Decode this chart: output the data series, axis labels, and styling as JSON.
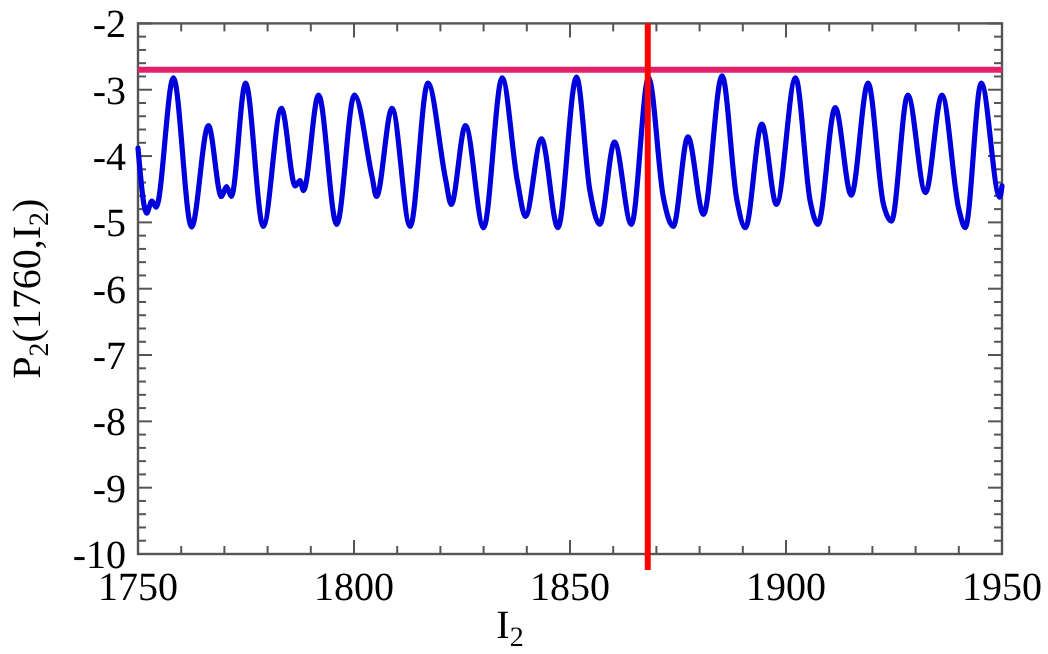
{
  "chart_data": {
    "type": "line",
    "xlabel": "I$_{2}$",
    "ylabel": "P$_{2}$(1760,I$_{2}$)",
    "xlim": [
      1750,
      1950
    ],
    "ylim": [
      -10,
      -2
    ],
    "xticks": [
      1750,
      {
        "value": 1760,
        "label": null
      },
      {
        "value": 1770,
        "label": null
      },
      {
        "value": 1780,
        "label": null
      },
      {
        "value": 1790,
        "label": null
      },
      1800,
      {
        "value": 1810,
        "label": null
      },
      {
        "value": 1820,
        "label": null
      },
      {
        "value": 1830,
        "label": null
      },
      {
        "value": 1840,
        "label": null
      },
      1850,
      {
        "value": 1860,
        "label": null
      },
      {
        "value": 1870,
        "label": null
      },
      {
        "value": 1880,
        "label": null
      },
      {
        "value": 1890,
        "label": null
      },
      1900,
      {
        "value": 1910,
        "label": null
      },
      {
        "value": 1920,
        "label": null
      },
      {
        "value": 1930,
        "label": null
      },
      {
        "value": 1940,
        "label": null
      },
      1950
    ],
    "yticks": [
      -10,
      {
        "value": -9.8,
        "label": null
      },
      {
        "value": -9.6,
        "label": null
      },
      {
        "value": -9.4,
        "label": null
      },
      {
        "value": -9.2,
        "label": null
      },
      -9,
      {
        "value": -8.8,
        "label": null
      },
      {
        "value": -8.6,
        "label": null
      },
      {
        "value": -8.4,
        "label": null
      },
      {
        "value": -8.2,
        "label": null
      },
      -8,
      {
        "value": -7.8,
        "label": null
      },
      {
        "value": -7.6,
        "label": null
      },
      {
        "value": -7.4,
        "label": null
      },
      {
        "value": -7.2,
        "label": null
      },
      -7,
      {
        "value": -6.8,
        "label": null
      },
      {
        "value": -6.6,
        "label": null
      },
      {
        "value": -6.4,
        "label": null
      },
      {
        "value": -6.2,
        "label": null
      },
      -6,
      {
        "value": -5.8,
        "label": null
      },
      {
        "value": -5.6,
        "label": null
      },
      {
        "value": -5.4,
        "label": null
      },
      {
        "value": -5.2,
        "label": null
      },
      -5,
      {
        "value": -4.8,
        "label": null
      },
      {
        "value": -4.6,
        "label": null
      },
      {
        "value": -4.4,
        "label": null
      },
      {
        "value": -4.2,
        "label": null
      },
      -4,
      {
        "value": -3.8,
        "label": null
      },
      {
        "value": -3.6,
        "label": null
      },
      {
        "value": -3.4,
        "label": null
      },
      {
        "value": -3.2,
        "label": null
      },
      -3,
      {
        "value": -2.8,
        "label": null
      },
      {
        "value": -2.6,
        "label": null
      },
      {
        "value": -2.4,
        "label": null
      },
      {
        "value": -2.2,
        "label": null
      },
      -2
    ],
    "grid": false,
    "marker": "none",
    "line_style": "solid",
    "series": [
      {
        "color": "#0000dd",
        "x": [
          1750,
          1752,
          1753.2,
          1754.2,
          1758.2,
          1762.4,
          1766.3,
          1769.3,
          1770.5,
          1771.6,
          1774.9,
          1779,
          1783.2,
          1786.4,
          1787.5,
          1788.3,
          1791.8,
          1796,
          1800.1,
          1804.2,
          1805.2,
          1808.8,
          1813,
          1817.1,
          1821.2,
          1822.5,
          1825.8,
          1830,
          1834.3,
          1837.8,
          1839.7,
          1843.4,
          1847.2,
          1851.5,
          1854.6,
          1856.9,
          1860.3,
          1864.2,
          1868.2,
          1871.6,
          1873.9,
          1877.3,
          1880.9,
          1885.2,
          1888.6,
          1890.6,
          1894.4,
          1897.8,
          1902.2,
          1905.6,
          1907.4,
          1911.4,
          1915.1,
          1919,
          1922.5,
          1924.4,
          1928.2,
          1932.3,
          1936.1,
          1940,
          1941.5,
          1945.2,
          1949.5,
          1950
        ],
        "values": [
          -3.88,
          -4.86,
          -4.68,
          -4.77,
          -2.82,
          -5.07,
          -3.54,
          -4.61,
          -4.46,
          -4.61,
          -2.9,
          -5.06,
          -3.28,
          -4.45,
          -4.37,
          -4.52,
          -3.08,
          -5.03,
          -3.08,
          -4.32,
          -4.61,
          -3.28,
          -5.06,
          -2.9,
          -4.35,
          -4.73,
          -3.54,
          -5.08,
          -2.82,
          -4.37,
          -4.91,
          -3.74,
          -5.08,
          -2.81,
          -4.52,
          -5.03,
          -3.79,
          -5.03,
          -2.82,
          -4.62,
          -5.06,
          -3.71,
          -4.88,
          -2.79,
          -4.65,
          -5.08,
          -3.52,
          -4.73,
          -2.82,
          -4.68,
          -5.03,
          -3.27,
          -4.59,
          -2.9,
          -4.71,
          -4.98,
          -3.08,
          -4.55,
          -3.08,
          -4.8,
          -5.08,
          -2.9,
          -4.62,
          -4.45
        ]
      }
    ],
    "ref_lines": [
      {
        "axis": "y",
        "value": -2.7,
        "color": "#e0206a"
      },
      {
        "axis": "x",
        "value": 1868,
        "color": "#ff0000"
      }
    ]
  }
}
